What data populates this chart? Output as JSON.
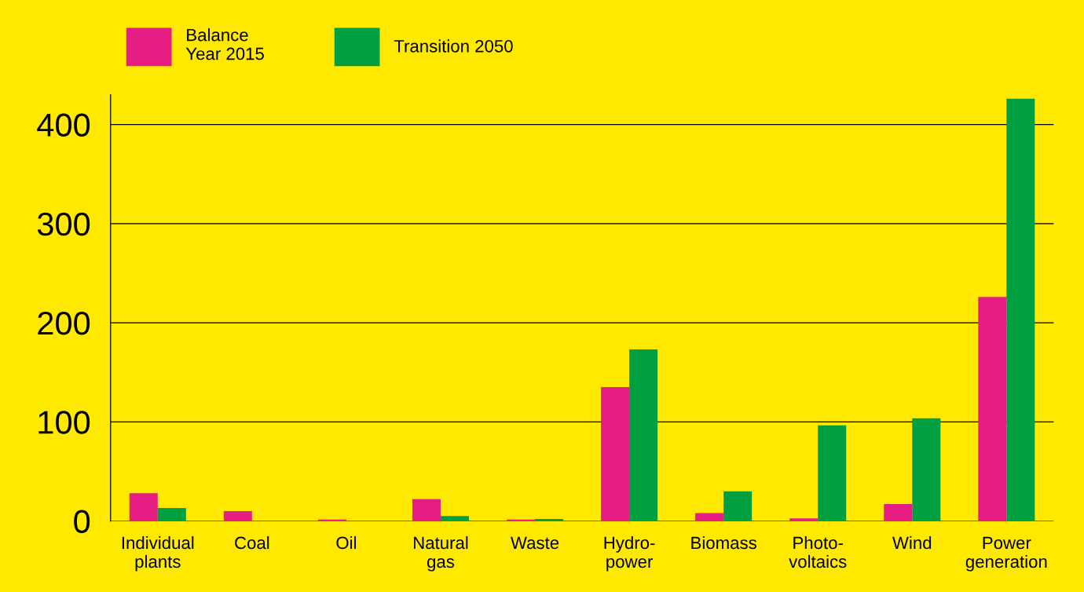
{
  "chart_data": {
    "type": "bar",
    "categories": [
      "Individual\nplants",
      "Coal",
      "Oil",
      "Natural\ngas",
      "Waste",
      "Hydro-\npower",
      "Biomass",
      "Photo-\nvoltaics",
      "Wind",
      "Power\ngeneration"
    ],
    "series": [
      {
        "name": "Balance\nYear 2015",
        "color": "#e61e84",
        "values": [
          28,
          10,
          1.5,
          22,
          1.5,
          135,
          8,
          2.5,
          17,
          226
        ]
      },
      {
        "name": "Transition 2050",
        "color": "#00a040",
        "values": [
          13,
          0,
          0,
          5,
          2,
          173,
          30,
          96.5,
          103.5,
          426
        ]
      }
    ],
    "ylim": [
      0,
      430
    ],
    "yticks": [
      0,
      100,
      200,
      300,
      400
    ],
    "grid": "y",
    "legend": "top left"
  }
}
